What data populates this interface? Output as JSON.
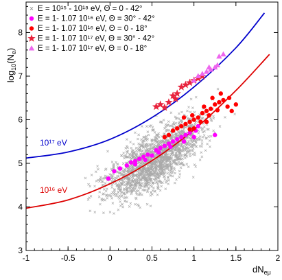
{
  "chart_data": {
    "type": "scatter",
    "xlabel_main": "dN",
    "xlabel_sub": "eμ",
    "ylabel_main": "log",
    "ylabel_sub": "10",
    "ylabel_arg": "(N",
    "ylabel_arg_sub": "e",
    "ylabel_close": ")",
    "xlim": [
      -1,
      2
    ],
    "ylim": [
      3,
      8.7
    ],
    "x_ticks": [
      -1,
      -0.5,
      0,
      0.5,
      1,
      1.5,
      2
    ],
    "x_tick_labels": [
      "-1",
      "-0.5",
      "0",
      "0.5",
      "1",
      "1.5",
      "2"
    ],
    "y_ticks": [
      3,
      4,
      5,
      6,
      7,
      8
    ],
    "y_tick_labels": [
      "3",
      "4",
      "5",
      "6",
      "7",
      "8"
    ],
    "legend_position": "top-left",
    "legend": [
      {
        "marker": "cross",
        "color": "#999999",
        "text": "E = 10¹⁵ - 10¹⁸ eV, Θ = 0 - 42°"
      },
      {
        "marker": "circle",
        "color": "#ff00ff",
        "text": "E = 1- 1.07 10¹⁶ eV, Θ = 30° - 42°"
      },
      {
        "marker": "circle",
        "color": "#ff0000",
        "text": "E = 1- 1.07 10¹⁶ eV, Θ = 0 - 18°"
      },
      {
        "marker": "star",
        "color": "#e8233d",
        "text": "E = 1- 1.07 10¹⁷ eV, Θ = 30° - 42°"
      },
      {
        "marker": "triangle",
        "color": "#ee66ee",
        "text": "E = 1- 1.07 10¹⁷ eV, Θ = 0 - 18°"
      }
    ],
    "curves": [
      {
        "label": "10¹⁷ eV",
        "color": "#0000cc",
        "points": [
          [
            -1,
            5.12
          ],
          [
            -0.5,
            5.26
          ],
          [
            0,
            5.55
          ],
          [
            0.5,
            6.05
          ],
          [
            1,
            6.75
          ],
          [
            1.5,
            7.65
          ],
          [
            1.84,
            8.45
          ]
        ]
      },
      {
        "label": "10¹⁶ eV",
        "color": "#dd0000",
        "points": [
          [
            -1,
            3.97
          ],
          [
            -0.5,
            4.16
          ],
          [
            0,
            4.53
          ],
          [
            0.5,
            5.06
          ],
          [
            1,
            5.77
          ],
          [
            1.5,
            6.67
          ],
          [
            1.9,
            7.5
          ]
        ]
      }
    ],
    "series": [
      {
        "name": "E = 10¹⁵ - 10¹⁸ eV, Θ = 0 - 42°",
        "marker": "cross",
        "color": "#aaaaaa",
        "cloud": {
          "x_range": [
            -1,
            1.85
          ],
          "y_range": [
            3.3,
            8.0
          ],
          "center_line": [
            [
              -0.9,
              3.7
            ],
            [
              0,
              4.5
            ],
            [
              0.5,
              5.0
            ],
            [
              1,
              5.7
            ],
            [
              1.5,
              6.6
            ]
          ],
          "spread": 0.45
        }
      },
      {
        "name": "E = 1- 1.07 10¹⁶ eV, Θ = 30° - 42°",
        "marker": "circle",
        "color": "#ff00ff",
        "points": [
          [
            -0.02,
            4.65
          ],
          [
            0.05,
            4.82
          ],
          [
            0.12,
            4.88
          ],
          [
            0.2,
            4.95
          ],
          [
            0.25,
            5.02
          ],
          [
            0.3,
            4.98
          ],
          [
            0.35,
            5.1
          ],
          [
            0.4,
            5.15
          ],
          [
            0.45,
            5.2
          ],
          [
            0.5,
            5.18
          ],
          [
            0.55,
            5.3
          ],
          [
            0.6,
            5.35
          ],
          [
            0.65,
            5.4
          ],
          [
            0.7,
            5.45
          ],
          [
            0.75,
            5.5
          ],
          [
            0.8,
            5.55
          ],
          [
            0.85,
            5.6
          ],
          [
            0.9,
            5.65
          ],
          [
            0.95,
            5.7
          ],
          [
            1.0,
            5.6
          ],
          [
            1.02,
            5.75
          ],
          [
            0.3,
            5.05
          ],
          [
            0.42,
            5.08
          ],
          [
            0.58,
            5.25
          ],
          [
            0.72,
            5.38
          ],
          [
            0.88,
            5.5
          ],
          [
            1.25,
            5.65
          ],
          [
            1.05,
            5.85
          ]
        ]
      },
      {
        "name": "E = 1- 1.07 10¹⁶ eV, Θ = 0 - 18°",
        "marker": "circle",
        "color": "#ff0000",
        "points": [
          [
            0.65,
            5.6
          ],
          [
            0.7,
            5.65
          ],
          [
            0.75,
            5.75
          ],
          [
            0.8,
            5.8
          ],
          [
            0.85,
            5.85
          ],
          [
            0.9,
            5.9
          ],
          [
            0.95,
            5.95
          ],
          [
            1.0,
            6.0
          ],
          [
            1.05,
            6.05
          ],
          [
            1.1,
            6.15
          ],
          [
            1.15,
            6.2
          ],
          [
            1.2,
            6.25
          ],
          [
            1.25,
            6.35
          ],
          [
            1.3,
            6.4
          ],
          [
            1.35,
            6.45
          ],
          [
            1.4,
            6.3
          ],
          [
            1.45,
            6.2
          ],
          [
            1.5,
            6.35
          ],
          [
            1.0,
            5.8
          ],
          [
            0.95,
            5.78
          ],
          [
            1.08,
            5.95
          ],
          [
            1.18,
            6.1
          ],
          [
            1.28,
            6.22
          ],
          [
            0.88,
            6.05
          ],
          [
            0.98,
            6.1
          ],
          [
            1.12,
            6.3
          ],
          [
            1.22,
            6.5
          ],
          [
            1.32,
            6.6
          ],
          [
            1.42,
            6.5
          ],
          [
            1.15,
            5.95
          ]
        ]
      },
      {
        "name": "E = 1- 1.07 10¹⁷ eV, Θ = 30° - 42°",
        "marker": "star",
        "color": "#e8233d",
        "points": [
          [
            0.55,
            6.3
          ],
          [
            0.6,
            6.35
          ],
          [
            0.65,
            6.28
          ],
          [
            0.7,
            6.4
          ],
          [
            0.75,
            6.55
          ],
          [
            0.8,
            6.6
          ],
          [
            0.85,
            6.75
          ],
          [
            0.9,
            6.8
          ],
          [
            0.95,
            6.85
          ],
          [
            1.0,
            6.9
          ],
          [
            1.05,
            6.95
          ],
          [
            1.1,
            7.0
          ],
          [
            0.78,
            6.48
          ]
        ]
      },
      {
        "name": "E = 1- 1.07 10¹⁷ eV, Θ = 0 - 18°",
        "marker": "triangle",
        "color": "#ee66ee",
        "points": [
          [
            1.0,
            6.9
          ],
          [
            1.05,
            7.0
          ],
          [
            1.1,
            7.05
          ],
          [
            1.15,
            7.1
          ],
          [
            1.2,
            7.15
          ],
          [
            1.25,
            7.2
          ],
          [
            1.3,
            7.45
          ],
          [
            1.35,
            7.5
          ],
          [
            1.18,
            7.2
          ],
          [
            1.28,
            7.25
          ]
        ]
      }
    ]
  }
}
